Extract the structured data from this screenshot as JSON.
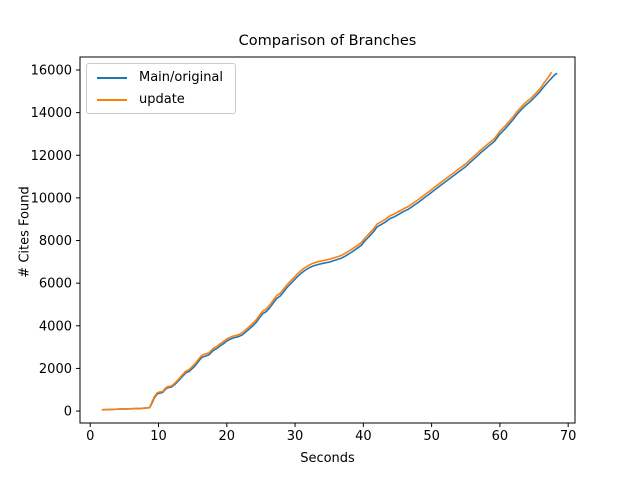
{
  "chart_data": {
    "type": "line",
    "title": "Comparison of Branches",
    "xlabel": "Seconds",
    "ylabel": "# Cites Found",
    "grid": false,
    "legend_position": "upper left",
    "xlim": [
      -1.5,
      71
    ],
    "ylim": [
      -560,
      16610
    ],
    "xticks": [
      0,
      10,
      20,
      30,
      40,
      50,
      60,
      70
    ],
    "yticks": [
      0,
      2000,
      4000,
      6000,
      8000,
      10000,
      12000,
      14000,
      16000
    ],
    "series": [
      {
        "name": "Main/original",
        "color": "#1f77b4",
        "points": [
          [
            1.8,
            60
          ],
          [
            3,
            75
          ],
          [
            4.5,
            90
          ],
          [
            6,
            105
          ],
          [
            7.5,
            125
          ],
          [
            8.7,
            160
          ],
          [
            9,
            350
          ],
          [
            9.4,
            620
          ],
          [
            9.8,
            800
          ],
          [
            10.1,
            840
          ],
          [
            10.6,
            870
          ],
          [
            11,
            1020
          ],
          [
            11.3,
            1090
          ],
          [
            11.9,
            1130
          ],
          [
            12.4,
            1250
          ],
          [
            13,
            1450
          ],
          [
            13.5,
            1620
          ],
          [
            14,
            1790
          ],
          [
            14.5,
            1860
          ],
          [
            15,
            2010
          ],
          [
            15.4,
            2140
          ],
          [
            16,
            2390
          ],
          [
            16.4,
            2530
          ],
          [
            17,
            2590
          ],
          [
            17.4,
            2640
          ],
          [
            18,
            2830
          ],
          [
            18.6,
            2950
          ],
          [
            19,
            3050
          ],
          [
            19.5,
            3160
          ],
          [
            20,
            3280
          ],
          [
            20.5,
            3370
          ],
          [
            21,
            3430
          ],
          [
            21.7,
            3490
          ],
          [
            22.3,
            3580
          ],
          [
            23,
            3770
          ],
          [
            23.7,
            3970
          ],
          [
            24.3,
            4160
          ],
          [
            24.9,
            4420
          ],
          [
            25.3,
            4580
          ],
          [
            25.8,
            4670
          ],
          [
            26.3,
            4850
          ],
          [
            26.8,
            5060
          ],
          [
            27.3,
            5280
          ],
          [
            27.8,
            5390
          ],
          [
            28.3,
            5580
          ],
          [
            28.8,
            5790
          ],
          [
            29.3,
            5960
          ],
          [
            29.8,
            6120
          ],
          [
            30.3,
            6290
          ],
          [
            30.8,
            6440
          ],
          [
            31.4,
            6590
          ],
          [
            32,
            6710
          ],
          [
            32.6,
            6800
          ],
          [
            33.3,
            6870
          ],
          [
            34.1,
            6930
          ],
          [
            35,
            6990
          ],
          [
            35.9,
            7080
          ],
          [
            36.7,
            7160
          ],
          [
            37.4,
            7280
          ],
          [
            38.2,
            7440
          ],
          [
            39,
            7610
          ],
          [
            39.7,
            7780
          ],
          [
            40.3,
            8010
          ],
          [
            40.9,
            8210
          ],
          [
            41.5,
            8420
          ],
          [
            42,
            8640
          ],
          [
            42.5,
            8730
          ],
          [
            43.2,
            8860
          ],
          [
            43.9,
            9030
          ],
          [
            44.5,
            9110
          ],
          [
            45.2,
            9230
          ],
          [
            45.9,
            9360
          ],
          [
            46.6,
            9470
          ],
          [
            47.4,
            9650
          ],
          [
            48.1,
            9800
          ],
          [
            48.9,
            10000
          ],
          [
            49.7,
            10190
          ],
          [
            50.5,
            10390
          ],
          [
            51.3,
            10580
          ],
          [
            52,
            10750
          ],
          [
            52.8,
            10940
          ],
          [
            53.5,
            11110
          ],
          [
            54.2,
            11280
          ],
          [
            55,
            11470
          ],
          [
            55.7,
            11680
          ],
          [
            56.4,
            11880
          ],
          [
            57.1,
            12090
          ],
          [
            57.8,
            12280
          ],
          [
            58.5,
            12470
          ],
          [
            59.2,
            12650
          ],
          [
            60,
            13000
          ],
          [
            60.7,
            13220
          ],
          [
            61.4,
            13480
          ],
          [
            62,
            13700
          ],
          [
            62.6,
            13950
          ],
          [
            63.2,
            14160
          ],
          [
            63.8,
            14350
          ],
          [
            64.5,
            14530
          ],
          [
            65.2,
            14760
          ],
          [
            65.9,
            15000
          ],
          [
            66.5,
            15240
          ],
          [
            67.1,
            15460
          ],
          [
            67.6,
            15630
          ],
          [
            68,
            15770
          ],
          [
            68.3,
            15830
          ]
        ]
      },
      {
        "name": "update",
        "color": "#ff7f0e",
        "points": [
          [
            1.8,
            65
          ],
          [
            3,
            80
          ],
          [
            4.5,
            95
          ],
          [
            6,
            110
          ],
          [
            7.5,
            130
          ],
          [
            8.7,
            170
          ],
          [
            9,
            400
          ],
          [
            9.4,
            680
          ],
          [
            9.8,
            850
          ],
          [
            10.1,
            890
          ],
          [
            10.6,
            920
          ],
          [
            11,
            1070
          ],
          [
            11.3,
            1140
          ],
          [
            11.9,
            1180
          ],
          [
            12.4,
            1310
          ],
          [
            13,
            1520
          ],
          [
            13.5,
            1700
          ],
          [
            14,
            1870
          ],
          [
            14.5,
            1950
          ],
          [
            15,
            2110
          ],
          [
            15.4,
            2240
          ],
          [
            16,
            2490
          ],
          [
            16.4,
            2630
          ],
          [
            17,
            2690
          ],
          [
            17.4,
            2740
          ],
          [
            18,
            2930
          ],
          [
            18.6,
            3050
          ],
          [
            19,
            3150
          ],
          [
            19.5,
            3260
          ],
          [
            20,
            3380
          ],
          [
            20.5,
            3460
          ],
          [
            21,
            3520
          ],
          [
            21.7,
            3580
          ],
          [
            22.3,
            3680
          ],
          [
            23,
            3880
          ],
          [
            23.7,
            4080
          ],
          [
            24.3,
            4280
          ],
          [
            24.9,
            4540
          ],
          [
            25.3,
            4700
          ],
          [
            25.8,
            4790
          ],
          [
            26.3,
            4980
          ],
          [
            26.8,
            5190
          ],
          [
            27.3,
            5410
          ],
          [
            27.8,
            5520
          ],
          [
            28.3,
            5710
          ],
          [
            28.8,
            5920
          ],
          [
            29.3,
            6090
          ],
          [
            29.8,
            6250
          ],
          [
            30.3,
            6420
          ],
          [
            30.8,
            6570
          ],
          [
            31.4,
            6720
          ],
          [
            32,
            6840
          ],
          [
            32.6,
            6930
          ],
          [
            33.3,
            7000
          ],
          [
            34.1,
            7060
          ],
          [
            35,
            7120
          ],
          [
            35.9,
            7210
          ],
          [
            36.7,
            7290
          ],
          [
            37.4,
            7410
          ],
          [
            38.2,
            7570
          ],
          [
            39,
            7740
          ],
          [
            39.7,
            7910
          ],
          [
            40.3,
            8140
          ],
          [
            40.9,
            8340
          ],
          [
            41.5,
            8550
          ],
          [
            42,
            8770
          ],
          [
            42.5,
            8860
          ],
          [
            43.2,
            8990
          ],
          [
            43.9,
            9160
          ],
          [
            44.5,
            9240
          ],
          [
            45.2,
            9360
          ],
          [
            45.9,
            9490
          ],
          [
            46.6,
            9600
          ],
          [
            47.4,
            9780
          ],
          [
            48.1,
            9930
          ],
          [
            48.9,
            10130
          ],
          [
            49.7,
            10320
          ],
          [
            50.5,
            10520
          ],
          [
            51.3,
            10710
          ],
          [
            52,
            10880
          ],
          [
            52.8,
            11070
          ],
          [
            53.5,
            11240
          ],
          [
            54.2,
            11410
          ],
          [
            55,
            11600
          ],
          [
            55.7,
            11810
          ],
          [
            56.4,
            12010
          ],
          [
            57.1,
            12220
          ],
          [
            57.8,
            12410
          ],
          [
            58.5,
            12600
          ],
          [
            59.2,
            12780
          ],
          [
            60,
            13130
          ],
          [
            60.7,
            13350
          ],
          [
            61.4,
            13610
          ],
          [
            62,
            13830
          ],
          [
            62.6,
            14080
          ],
          [
            63.2,
            14290
          ],
          [
            63.8,
            14480
          ],
          [
            64.5,
            14660
          ],
          [
            65.2,
            14890
          ],
          [
            65.9,
            15130
          ],
          [
            66.4,
            15370
          ],
          [
            66.9,
            15580
          ],
          [
            67.3,
            15750
          ],
          [
            67.5,
            15870
          ]
        ]
      }
    ]
  }
}
